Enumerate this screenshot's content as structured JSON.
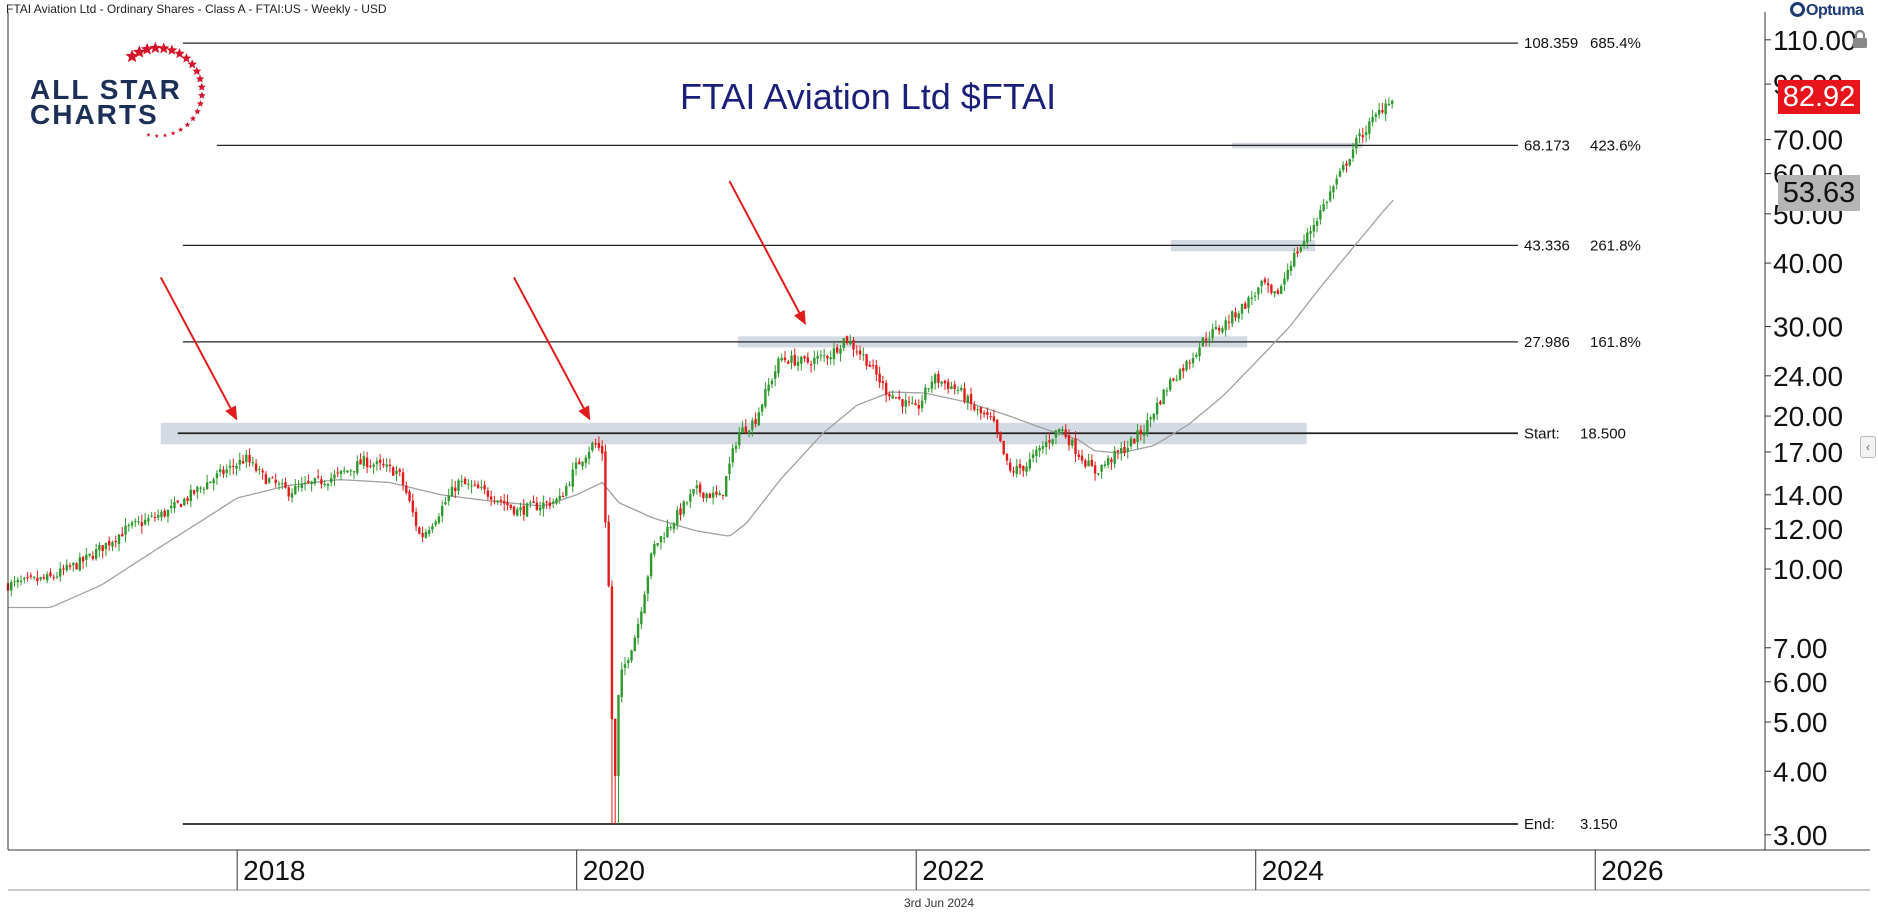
{
  "header": {
    "instrument": "FTAI Aviation Ltd - Ordinary Shares - Class A - FTAI:US - Weekly - USD",
    "date": "3rd Jun 2024",
    "brand": "Optuma"
  },
  "logo": {
    "line1": "ALL STAR",
    "line2": "CHARTS",
    "icon": "star-ring-icon"
  },
  "colors": {
    "up": "#2e9a2e",
    "down": "#e21b1b",
    "ma": "#a0a0a0",
    "level": "#222222",
    "zone": "#c5cdd9",
    "arrow": "#e21b1b",
    "last_price_bg": "#e8141b",
    "title": "#1a1f7a"
  },
  "chart_data": {
    "type": "candlestick",
    "title": "FTAI Aviation Ltd $FTAI",
    "scale": "log",
    "ylim": [
      2.8,
      115
    ],
    "y_ticks": [
      "110.00",
      "90.00",
      "70.00",
      "60.00",
      "50.00",
      "40.00",
      "30.00",
      "24.00",
      "20.00",
      "17.00",
      "14.00",
      "12.00",
      "10.00",
      "7.00",
      "6.00",
      "5.00",
      "4.00",
      "3.00"
    ],
    "x_ticks": [
      {
        "label": "2018",
        "date": 2018.0
      },
      {
        "label": "2020",
        "date": 2020.0
      },
      {
        "label": "2022",
        "date": 2022.0
      },
      {
        "label": "2024",
        "date": 2024.0
      },
      {
        "label": "2026",
        "date": 2026.0
      }
    ],
    "xlim": [
      2016.65,
      2027.0
    ],
    "last_price": "82.92",
    "moving_average_value": "53.63",
    "fib_levels": [
      {
        "price": 108.359,
        "label": "108.359",
        "pct": "685.4%",
        "start_date": 2017.68
      },
      {
        "price": 68.173,
        "label": "68.173",
        "pct": "423.6%",
        "start_date": 2017.88
      },
      {
        "price": 43.336,
        "label": "43.336",
        "pct": "261.8%",
        "start_date": 2017.68
      },
      {
        "price": 27.986,
        "label": "27.986",
        "pct": "161.8%",
        "start_date": 2017.68
      },
      {
        "price": 18.5,
        "label": "18.500",
        "prefix": "Start:",
        "start_date": 2017.65
      },
      {
        "price": 3.15,
        "label": "3.150",
        "prefix": "End:",
        "start_date": 2017.68
      }
    ],
    "zones": [
      {
        "x0": 2017.55,
        "x1": 2024.3,
        "low": 17.6,
        "high": 19.4
      },
      {
        "x0": 2020.95,
        "x1": 2023.95,
        "low": 27.3,
        "high": 28.7
      },
      {
        "x0": 2023.5,
        "x1": 2024.35,
        "low": 42.2,
        "high": 44.4
      },
      {
        "x0": 2023.86,
        "x1": 2024.63,
        "low": 67.3,
        "high": 69.0
      }
    ],
    "arrows": [
      {
        "from_date": 2017.55,
        "from_price": 37.5,
        "to_date": 2018.0,
        "to_price": 19.6
      },
      {
        "from_date": 2019.63,
        "from_price": 37.5,
        "to_date": 2020.08,
        "to_price": 19.6
      },
      {
        "from_date": 2020.9,
        "from_price": 58.0,
        "to_date": 2021.35,
        "to_price": 30.2
      }
    ],
    "price_anchors": [
      [
        2016.65,
        9.3
      ],
      [
        2016.9,
        9.6
      ],
      [
        2017.1,
        10.4
      ],
      [
        2017.35,
        12.0
      ],
      [
        2017.6,
        13.0
      ],
      [
        2017.85,
        15.0
      ],
      [
        2018.05,
        16.5
      ],
      [
        2018.15,
        15.2
      ],
      [
        2018.3,
        14.2
      ],
      [
        2018.6,
        15.3
      ],
      [
        2018.75,
        16.3
      ],
      [
        2018.95,
        15.5
      ],
      [
        2019.0,
        14.0
      ],
      [
        2019.08,
        11.5
      ],
      [
        2019.18,
        12.8
      ],
      [
        2019.3,
        14.8
      ],
      [
        2019.5,
        14.0
      ],
      [
        2019.65,
        13.0
      ],
      [
        2019.9,
        13.7
      ],
      [
        2020.0,
        16.0
      ],
      [
        2020.1,
        17.7
      ],
      [
        2020.15,
        17.0
      ],
      [
        2020.19,
        9.0
      ],
      [
        2020.22,
        3.4
      ],
      [
        2020.25,
        6.0
      ],
      [
        2020.35,
        7.5
      ],
      [
        2020.45,
        11.0
      ],
      [
        2020.55,
        12.2
      ],
      [
        2020.7,
        14.3
      ],
      [
        2020.85,
        13.8
      ],
      [
        2020.95,
        18.5
      ],
      [
        2021.05,
        19.6
      ],
      [
        2021.12,
        22.5
      ],
      [
        2021.2,
        26.0
      ],
      [
        2021.35,
        25.5
      ],
      [
        2021.5,
        26.5
      ],
      [
        2021.58,
        28.5
      ],
      [
        2021.7,
        26.0
      ],
      [
        2021.82,
        22.5
      ],
      [
        2021.95,
        21.0
      ],
      [
        2022.0,
        20.5
      ],
      [
        2022.1,
        23.8
      ],
      [
        2022.25,
        22.5
      ],
      [
        2022.35,
        20.5
      ],
      [
        2022.45,
        19.5
      ],
      [
        2022.55,
        15.5
      ],
      [
        2022.65,
        16.0
      ],
      [
        2022.75,
        17.5
      ],
      [
        2022.85,
        19.0
      ],
      [
        2022.95,
        17.0
      ],
      [
        2023.05,
        15.5
      ],
      [
        2023.15,
        16.5
      ],
      [
        2023.25,
        17.5
      ],
      [
        2023.35,
        19.0
      ],
      [
        2023.4,
        20.5
      ],
      [
        2023.5,
        23.5
      ],
      [
        2023.6,
        25.5
      ],
      [
        2023.7,
        28.5
      ],
      [
        2023.8,
        30.0
      ],
      [
        2023.95,
        33.5
      ],
      [
        2024.05,
        36.5
      ],
      [
        2024.1,
        34.0
      ],
      [
        2024.15,
        36.0
      ],
      [
        2024.2,
        40.0
      ],
      [
        2024.3,
        45.0
      ],
      [
        2024.4,
        52.0
      ],
      [
        2024.5,
        60.0
      ],
      [
        2024.6,
        70.0
      ],
      [
        2024.7,
        77.0
      ],
      [
        2024.78,
        84.0
      ],
      [
        2024.82,
        82.92
      ]
    ],
    "ma_anchors": [
      [
        2016.65,
        8.4
      ],
      [
        2016.9,
        8.4
      ],
      [
        2017.2,
        9.3
      ],
      [
        2017.5,
        10.8
      ],
      [
        2017.8,
        12.5
      ],
      [
        2018.0,
        13.8
      ],
      [
        2018.3,
        14.6
      ],
      [
        2018.6,
        15.0
      ],
      [
        2018.9,
        14.8
      ],
      [
        2019.2,
        14.0
      ],
      [
        2019.5,
        13.6
      ],
      [
        2019.8,
        13.3
      ],
      [
        2020.0,
        14.0
      ],
      [
        2020.15,
        14.8
      ],
      [
        2020.25,
        13.5
      ],
      [
        2020.45,
        12.6
      ],
      [
        2020.7,
        11.9
      ],
      [
        2020.9,
        11.6
      ],
      [
        2021.0,
        12.3
      ],
      [
        2021.2,
        15.0
      ],
      [
        2021.45,
        18.5
      ],
      [
        2021.65,
        21.0
      ],
      [
        2021.85,
        22.3
      ],
      [
        2022.05,
        22.2
      ],
      [
        2022.3,
        21.3
      ],
      [
        2022.55,
        20.0
      ],
      [
        2022.75,
        18.9
      ],
      [
        2022.95,
        18.0
      ],
      [
        2023.05,
        17.1
      ],
      [
        2023.2,
        16.9
      ],
      [
        2023.4,
        17.5
      ],
      [
        2023.6,
        19.2
      ],
      [
        2023.8,
        21.8
      ],
      [
        2024.0,
        25.5
      ],
      [
        2024.2,
        30.0
      ],
      [
        2024.4,
        36.5
      ],
      [
        2024.6,
        44.0
      ],
      [
        2024.75,
        50.5
      ],
      [
        2024.82,
        53.63
      ]
    ]
  }
}
